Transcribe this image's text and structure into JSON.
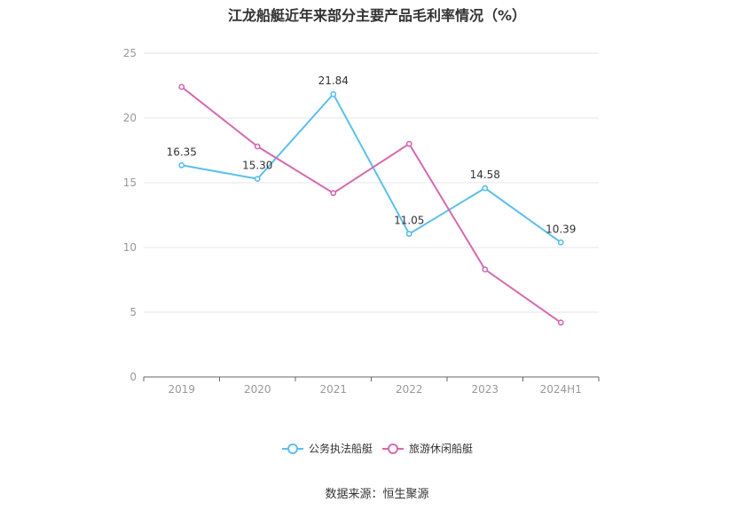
{
  "chart_data": {
    "type": "line",
    "title": "江龙船艇近年来部分主要产品毛利率情况（%）",
    "categories": [
      "2019",
      "2020",
      "2021",
      "2022",
      "2023",
      "2024H1"
    ],
    "ylim": [
      0,
      25
    ],
    "yticks": [
      0,
      5,
      10,
      15,
      20,
      25
    ],
    "grid": true,
    "legend_position": "bottom",
    "series": [
      {
        "name": "公务执法船艇",
        "color": "#5bc0eb",
        "values": [
          16.35,
          15.3,
          21.84,
          11.05,
          14.58,
          10.39
        ],
        "labels": [
          "16.35",
          "15.30",
          "21.84",
          "11.05",
          "14.58",
          "10.39"
        ]
      },
      {
        "name": "旅游休闲船艇",
        "color": "#d36bb0",
        "values": [
          22.4,
          17.8,
          14.2,
          18.0,
          8.3,
          4.2
        ]
      }
    ]
  },
  "source": "数据来源：恒生聚源"
}
